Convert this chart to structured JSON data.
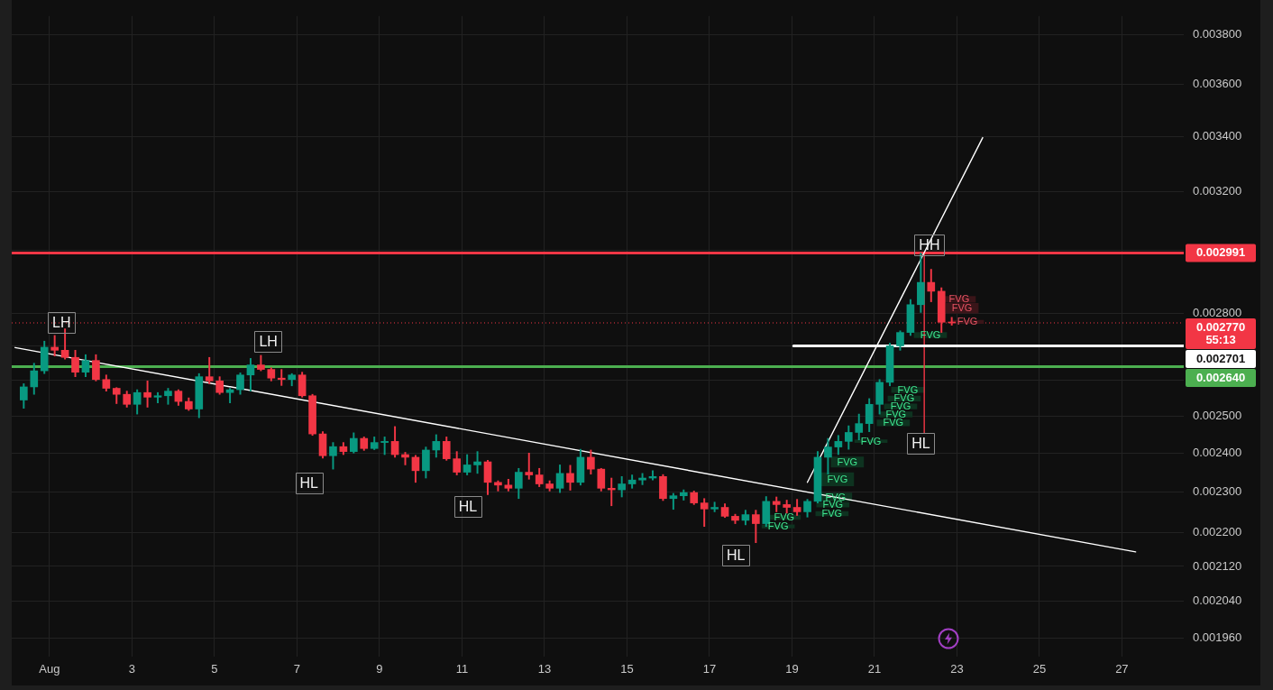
{
  "chart_data": {
    "type": "candlestick",
    "x": [
      "--07-31T09:00",
      "--07-31T15:00",
      "--07-31T21:00",
      "--08-01T03:00",
      "--08-01T09:00",
      "--08-01T15:00",
      "--08-01T21:00",
      "--08-02T03:00",
      "--08-02T09:00",
      "--08-02T15:00",
      "--08-02T21:00",
      "--08-03T03:00",
      "--08-03T09:00",
      "--08-03T15:00",
      "--08-03T21:00",
      "--08-04T03:00",
      "--08-04T09:00",
      "--08-04T15:00",
      "--08-04T21:00",
      "--08-05T03:00",
      "--08-05T09:00",
      "--08-05T15:00",
      "--08-05T21:00",
      "--08-06T03:00",
      "--08-06T09:00",
      "--08-06T15:00",
      "--08-06T21:00",
      "--08-07T03:00",
      "--08-07T09:00",
      "--08-07T15:00",
      "--08-07T21:00",
      "--08-08T03:00",
      "--08-08T09:00",
      "--08-08T15:00",
      "--08-08T21:00",
      "--08-09T03:00",
      "--08-09T09:00",
      "--08-09T15:00",
      "--08-09T21:00",
      "--08-10T03:00",
      "--08-10T09:00",
      "--08-10T15:00",
      "--08-10T21:00",
      "--08-11T03:00",
      "--08-11T09:00",
      "--08-11T15:00",
      "--08-11T21:00",
      "--08-12T03:00",
      "--08-12T09:00",
      "--08-12T15:00",
      "--08-12T21:00",
      "--08-13T03:00",
      "--08-13T09:00",
      "--08-13T15:00",
      "--08-13T21:00",
      "--08-14T03:00",
      "--08-14T09:00",
      "--08-14T15:00",
      "--08-14T21:00",
      "--08-15T03:00",
      "--08-15T09:00",
      "--08-15T15:00",
      "--08-15T21:00",
      "--08-16T03:00",
      "--08-16T09:00",
      "--08-16T15:00",
      "--08-16T21:00",
      "--08-17T03:00",
      "--08-17T09:00",
      "--08-17T15:00",
      "--08-17T21:00",
      "--08-18T03:00",
      "--08-18T09:00",
      "--08-18T15:00",
      "--08-18T21:00",
      "--08-19T03:00",
      "--08-19T09:00",
      "--08-19T15:00",
      "--08-19T21:00",
      "--08-20T03:00",
      "--08-20T09:00",
      "--08-20T15:00",
      "--08-20T21:00",
      "--08-21T03:00",
      "--08-21T09:00",
      "--08-21T15:00",
      "--08-21T21:00",
      "--08-22T03:00",
      "--08-22T09:00",
      "--08-22T15:00",
      "--08-22T21:00"
    ],
    "ohlc": [
      [
        0.002545,
        0.002591,
        0.002522,
        0.002582
      ],
      [
        0.002582,
        0.00265,
        0.002561,
        0.002628
      ],
      [
        0.002628,
        0.002715,
        0.00262,
        0.002697
      ],
      [
        0.002697,
        0.002732,
        0.002671,
        0.002688
      ],
      [
        0.002688,
        0.002752,
        0.002662,
        0.002667
      ],
      [
        0.002667,
        0.002688,
        0.002611,
        0.002624
      ],
      [
        0.002624,
        0.002675,
        0.002611,
        0.002658
      ],
      [
        0.002658,
        0.002675,
        0.002599,
        0.002603
      ],
      [
        0.002603,
        0.002616,
        0.00257,
        0.002578
      ],
      [
        0.002578,
        0.00258,
        0.002535,
        0.002561
      ],
      [
        0.002561,
        0.00257,
        0.002525,
        0.002533
      ],
      [
        0.002533,
        0.002574,
        0.002506,
        0.002566
      ],
      [
        0.002566,
        0.002599,
        0.002525,
        0.002553
      ],
      [
        0.002553,
        0.002566,
        0.002537,
        0.002557
      ],
      [
        0.002557,
        0.002578,
        0.002533,
        0.00257
      ],
      [
        0.00257,
        0.002574,
        0.00253,
        0.002541
      ],
      [
        0.002541,
        0.002551,
        0.002516,
        0.00252
      ],
      [
        0.00252,
        0.00262,
        0.002496,
        0.002611
      ],
      [
        0.002611,
        0.002667,
        0.002591,
        0.002599
      ],
      [
        0.002599,
        0.002611,
        0.002561,
        0.002566
      ],
      [
        0.002566,
        0.002578,
        0.002537,
        0.002574
      ],
      [
        0.002574,
        0.002622,
        0.002561,
        0.002616
      ],
      [
        0.002616,
        0.002664,
        0.00257,
        0.002645
      ],
      [
        0.002645,
        0.002673,
        0.002628,
        0.002632
      ],
      [
        0.002632,
        0.002637,
        0.002599,
        0.002607
      ],
      [
        0.002607,
        0.002632,
        0.002586,
        0.002603
      ],
      [
        0.002603,
        0.00262,
        0.002585,
        0.002616
      ],
      [
        0.002616,
        0.002624,
        0.002553,
        0.002557
      ],
      [
        0.002557,
        0.002561,
        0.002448,
        0.002452
      ],
      [
        0.002452,
        0.002458,
        0.002388,
        0.002394
      ],
      [
        0.002394,
        0.002429,
        0.002359,
        0.002418
      ],
      [
        0.002418,
        0.002429,
        0.002397,
        0.002405
      ],
      [
        0.002405,
        0.002455,
        0.002401,
        0.00244
      ],
      [
        0.00244,
        0.002444,
        0.002408,
        0.002413
      ],
      [
        0.002413,
        0.002444,
        0.00241,
        0.002429
      ],
      [
        0.002429,
        0.002444,
        0.002397,
        0.002432
      ],
      [
        0.002432,
        0.002472,
        0.00239,
        0.002397
      ],
      [
        0.002397,
        0.002403,
        0.00237,
        0.00239
      ],
      [
        0.00239,
        0.002395,
        0.002325,
        0.002355
      ],
      [
        0.002355,
        0.002417,
        0.002336,
        0.002409
      ],
      [
        0.002409,
        0.00245,
        0.00239,
        0.002432
      ],
      [
        0.002432,
        0.002444,
        0.002382,
        0.002386
      ],
      [
        0.002386,
        0.002405,
        0.002344,
        0.002351
      ],
      [
        0.002351,
        0.002397,
        0.002344,
        0.00237
      ],
      [
        0.00237,
        0.002405,
        0.002348,
        0.002378
      ],
      [
        0.002378,
        0.002382,
        0.002294,
        0.002325
      ],
      [
        0.002325,
        0.002329,
        0.002303,
        0.002318
      ],
      [
        0.002318,
        0.002333,
        0.002303,
        0.00231
      ],
      [
        0.00231,
        0.002361,
        0.002284,
        0.002351
      ],
      [
        0.002351,
        0.002401,
        0.002333,
        0.002344
      ],
      [
        0.002344,
        0.002361,
        0.002314,
        0.002321
      ],
      [
        0.002321,
        0.002329,
        0.002303,
        0.00231
      ],
      [
        0.00231,
        0.00237,
        0.002299,
        0.002348
      ],
      [
        0.002348,
        0.002369,
        0.002305,
        0.002325
      ],
      [
        0.002325,
        0.002411,
        0.002318,
        0.00239
      ],
      [
        0.00239,
        0.002409,
        0.002346,
        0.002359
      ],
      [
        0.002359,
        0.002361,
        0.002303,
        0.00231
      ],
      [
        0.00231,
        0.002336,
        0.002266,
        0.002306
      ],
      [
        0.002306,
        0.00234,
        0.002288,
        0.002321
      ],
      [
        0.002321,
        0.002344,
        0.00231,
        0.002331
      ],
      [
        0.002331,
        0.002348,
        0.002319,
        0.002336
      ],
      [
        0.002336,
        0.002355,
        0.002331,
        0.00234
      ],
      [
        0.00234,
        0.002345,
        0.002279,
        0.002284
      ],
      [
        0.002284,
        0.002297,
        0.002257,
        0.002291
      ],
      [
        0.002291,
        0.002306,
        0.00228,
        0.002299
      ],
      [
        0.002299,
        0.002303,
        0.002269,
        0.002273
      ],
      [
        0.002273,
        0.002284,
        0.002215,
        0.002258
      ],
      [
        0.002258,
        0.002275,
        0.002251,
        0.002262
      ],
      [
        0.002262,
        0.002271,
        0.002237,
        0.00224
      ],
      [
        0.00224,
        0.002245,
        0.002222,
        0.00223
      ],
      [
        0.00223,
        0.002255,
        0.002219,
        0.002244
      ],
      [
        0.002244,
        0.002255,
        0.002176,
        0.002222
      ],
      [
        0.002222,
        0.002289,
        0.002215,
        0.002277
      ],
      [
        0.002277,
        0.002288,
        0.002251,
        0.002269
      ],
      [
        0.002269,
        0.00228,
        0.002248,
        0.002262
      ],
      [
        0.002262,
        0.002282,
        0.002242,
        0.002251
      ],
      [
        0.002251,
        0.002282,
        0.002238,
        0.002277
      ],
      [
        0.002277,
        0.002405,
        0.002273,
        0.00239
      ],
      [
        0.00239,
        0.00244,
        0.002346,
        0.002417
      ],
      [
        0.002417,
        0.002448,
        0.002397,
        0.002432
      ],
      [
        0.002432,
        0.002474,
        0.002411,
        0.002456
      ],
      [
        0.002456,
        0.002506,
        0.002436,
        0.00248
      ],
      [
        0.00248,
        0.002549,
        0.002458,
        0.002533
      ],
      [
        0.002533,
        0.002603,
        0.002506,
        0.002595
      ],
      [
        0.002595,
        0.002709,
        0.002585,
        0.002701
      ],
      [
        0.002701,
        0.002746,
        0.002688,
        0.002741
      ],
      [
        0.002741,
        0.002842,
        0.002732,
        0.002826
      ],
      [
        0.002826,
        0.002991,
        0.002802,
        0.002896
      ],
      [
        0.002896,
        0.002938,
        0.002835,
        0.002868
      ],
      [
        0.002868,
        0.002879,
        0.002741,
        0.002772
      ],
      [
        0.002772,
        0.002787,
        0.002763,
        0.00277
      ]
    ],
    "colors": [
      "#089981",
      "#089981",
      "#089981",
      "#f23645",
      "#f23645",
      "#f23645",
      "#089981",
      "#f23645",
      "#f23645",
      "#f23645",
      "#f23645",
      "#089981",
      "#f23645",
      "#089981",
      "#089981",
      "#f23645",
      "#f23645",
      "#089981",
      "#f23645",
      "#f23645",
      "#089981",
      "#089981",
      "#089981",
      "#f23645",
      "#f23645",
      "#f23645",
      "#089981",
      "#f23645",
      "#f23645",
      "#f23645",
      "#089981",
      "#f23645",
      "#089981",
      "#f23645",
      "#089981",
      "#089981",
      "#f23645",
      "#f23645",
      "#f23645",
      "#089981",
      "#089981",
      "#f23645",
      "#f23645",
      "#089981",
      "#089981",
      "#f23645",
      "#f23645",
      "#f23645",
      "#089981",
      "#f23645",
      "#f23645",
      "#f23645",
      "#089981",
      "#f23645",
      "#089981",
      "#f23645",
      "#f23645",
      "#f23645",
      "#089981",
      "#089981",
      "#089981",
      "#089981",
      "#f23645",
      "#089981",
      "#089981",
      "#f23645",
      "#f23645",
      "#089981",
      "#f23645",
      "#f23645",
      "#089981",
      "#f23645",
      "#089981",
      "#f23645",
      "#f23645",
      "#f23645",
      "#089981",
      "#089981",
      "#089981",
      "#089981",
      "#089981",
      "#089981",
      "#089981",
      "#089981",
      "#089981",
      "#089981",
      "#089981",
      "#089981",
      "#f23645",
      "#f23645",
      "#f23645"
    ],
    "series": [
      {
        "type": "line",
        "x": [
          "--07-31T04:00",
          "--08-27T08:00"
        ],
        "values": [
          0.002696,
          0.002154
        ],
        "color": "#ffffff"
      },
      {
        "type": "line",
        "x": [
          "--08-19T09:00",
          "--08-23T15:00"
        ],
        "values": [
          0.002325,
          0.003395
        ],
        "color": "#ffffff"
      },
      {
        "type": "line",
        "x": [
          "--08-19T01:00",
          "--08-28T12:00"
        ],
        "values": [
          0.002701,
          0.002701
        ],
        "color": "#ffffff",
        "value_labels": [
          null,
          "0.002701"
        ]
      },
      {
        "type": "line",
        "x": [
          "--08-22T05:00",
          "--08-22T05:00"
        ],
        "values": [
          0.002991,
          0.002455
        ],
        "color": "#f23645"
      },
      {
        "type": "bar",
        "x": [
          "--08-18T16:00",
          "--08-18T19:30",
          "--08-19T23:20",
          "--08-19T23:50",
          "--08-20T01:25",
          "--08-20T02:30",
          "--08-20T08:15",
          "--08-20T22:00",
          "--08-21T11:00",
          "--08-21T12:35",
          "--08-21T15:15",
          "--08-21T17:20",
          "--08-21T19:25",
          "--08-22T08:35"
        ],
        "base": [
          0.002211,
          0.002232,
          0.002241,
          0.002263,
          0.002278,
          0.002316,
          0.002364,
          0.002429,
          0.002474,
          0.002498,
          0.00252,
          0.002542,
          0.002566,
          0.002725
        ],
        "values": [
          8e-06,
          1.1e-05,
          1.1e-05,
          1.1e-05,
          2e-05,
          3.4e-05,
          2.7e-05,
          7e-06,
          1.6e-05,
          1.4e-05,
          1.4e-05,
          1.4e-05,
          1.5e-05,
          1.6e-05
        ],
        "color": "#0e3320",
        "value_labels": [
          "FVG",
          "FVG",
          "FVG",
          "FVG",
          "FVG",
          "FVG",
          "FVG",
          "FVG",
          "FVG",
          "FVG",
          "FVG",
          "FVG",
          "FVG",
          "FVG"
        ]
      },
      {
        "type": "bar",
        "x": [
          "--08-23T01:20",
          "--08-23T03:00",
          "--08-23T06:05"
        ],
        "base": [
          0.002833,
          0.0028,
          0.002768
        ],
        "values": [
          1.9e-05,
          3e-05,
          1e-05
        ],
        "color": "#3a1519",
        "value_labels": [
          "FVG",
          "FVG",
          "FVG"
        ]
      }
    ],
    "xlim": [
      "--07-31T02:00",
      "--08-28T12:00"
    ],
    "xticks": [
      {
        "value": "--08-01",
        "label": "Aug"
      },
      {
        "value": "--08-03",
        "label": "3"
      },
      {
        "value": "--08-05",
        "label": "5"
      },
      {
        "value": "--08-07",
        "label": "7"
      },
      {
        "value": "--08-09",
        "label": "9"
      },
      {
        "value": "--08-11",
        "label": "11"
      },
      {
        "value": "--08-13",
        "label": "13"
      },
      {
        "value": "--08-15",
        "label": "15"
      },
      {
        "value": "--08-17",
        "label": "17"
      },
      {
        "value": "--08-19",
        "label": "19"
      },
      {
        "value": "--08-21",
        "label": "21"
      },
      {
        "value": "--08-23",
        "label": "23"
      },
      {
        "value": "--08-25",
        "label": "25"
      },
      {
        "value": "--08-27",
        "label": "27"
      }
    ],
    "ylim": [
      0.00192,
      0.00388
    ],
    "yticks": [
      {
        "value": 0.00196,
        "label": "0.001960"
      },
      {
        "value": 0.00204,
        "label": "0.002040"
      },
      {
        "value": 0.00212,
        "label": "0.002120"
      },
      {
        "value": 0.0022,
        "label": "0.002200"
      },
      {
        "value": 0.0023,
        "label": "0.002300"
      },
      {
        "value": 0.0024,
        "label": "0.002400"
      },
      {
        "value": 0.0025,
        "label": "0.002500"
      },
      {
        "value": 0.0026,
        "label": null
      },
      {
        "value": 0.0027,
        "label": null
      },
      {
        "value": 0.0028,
        "label": "0.002800"
      },
      {
        "value": 0.003,
        "label": null
      },
      {
        "value": 0.0032,
        "label": "0.003200"
      },
      {
        "value": 0.0034,
        "label": "0.003400"
      },
      {
        "value": 0.0036,
        "label": "0.003600"
      },
      {
        "value": 0.0038,
        "label": "0.003800"
      }
    ],
    "log": true,
    "grid": true,
    "ref_lines": [
      {
        "axis": "y",
        "value": 0.002991,
        "label": "0.002991",
        "color": "#f23645"
      },
      {
        "axis": "y",
        "value": 0.00277,
        "label": "0.002770\n55:13",
        "color": "#f23645",
        "line_style": "dotted"
      },
      {
        "axis": "y",
        "value": 0.00264,
        "label": "0.002640",
        "color": "#4caf50"
      }
    ],
    "annotations": [
      {
        "text": "LH",
        "x": "--08-01T07:00",
        "y": 0.002772
      },
      {
        "text": "LH",
        "x": "--08-06T07:20",
        "y": 0.002714
      },
      {
        "text": "HL",
        "x": "--08-07T07:00",
        "y": 0.002323
      },
      {
        "text": "HL",
        "x": "--08-11T03:25",
        "y": 0.002265
      },
      {
        "text": "HL",
        "x": "--08-17T15:20",
        "y": 0.002146
      },
      {
        "text": "HH",
        "x": "--08-22T08:00",
        "y": 0.003017
      },
      {
        "text": "HL",
        "x": "--08-22T03:00",
        "y": 0.002426
      }
    ]
  }
}
